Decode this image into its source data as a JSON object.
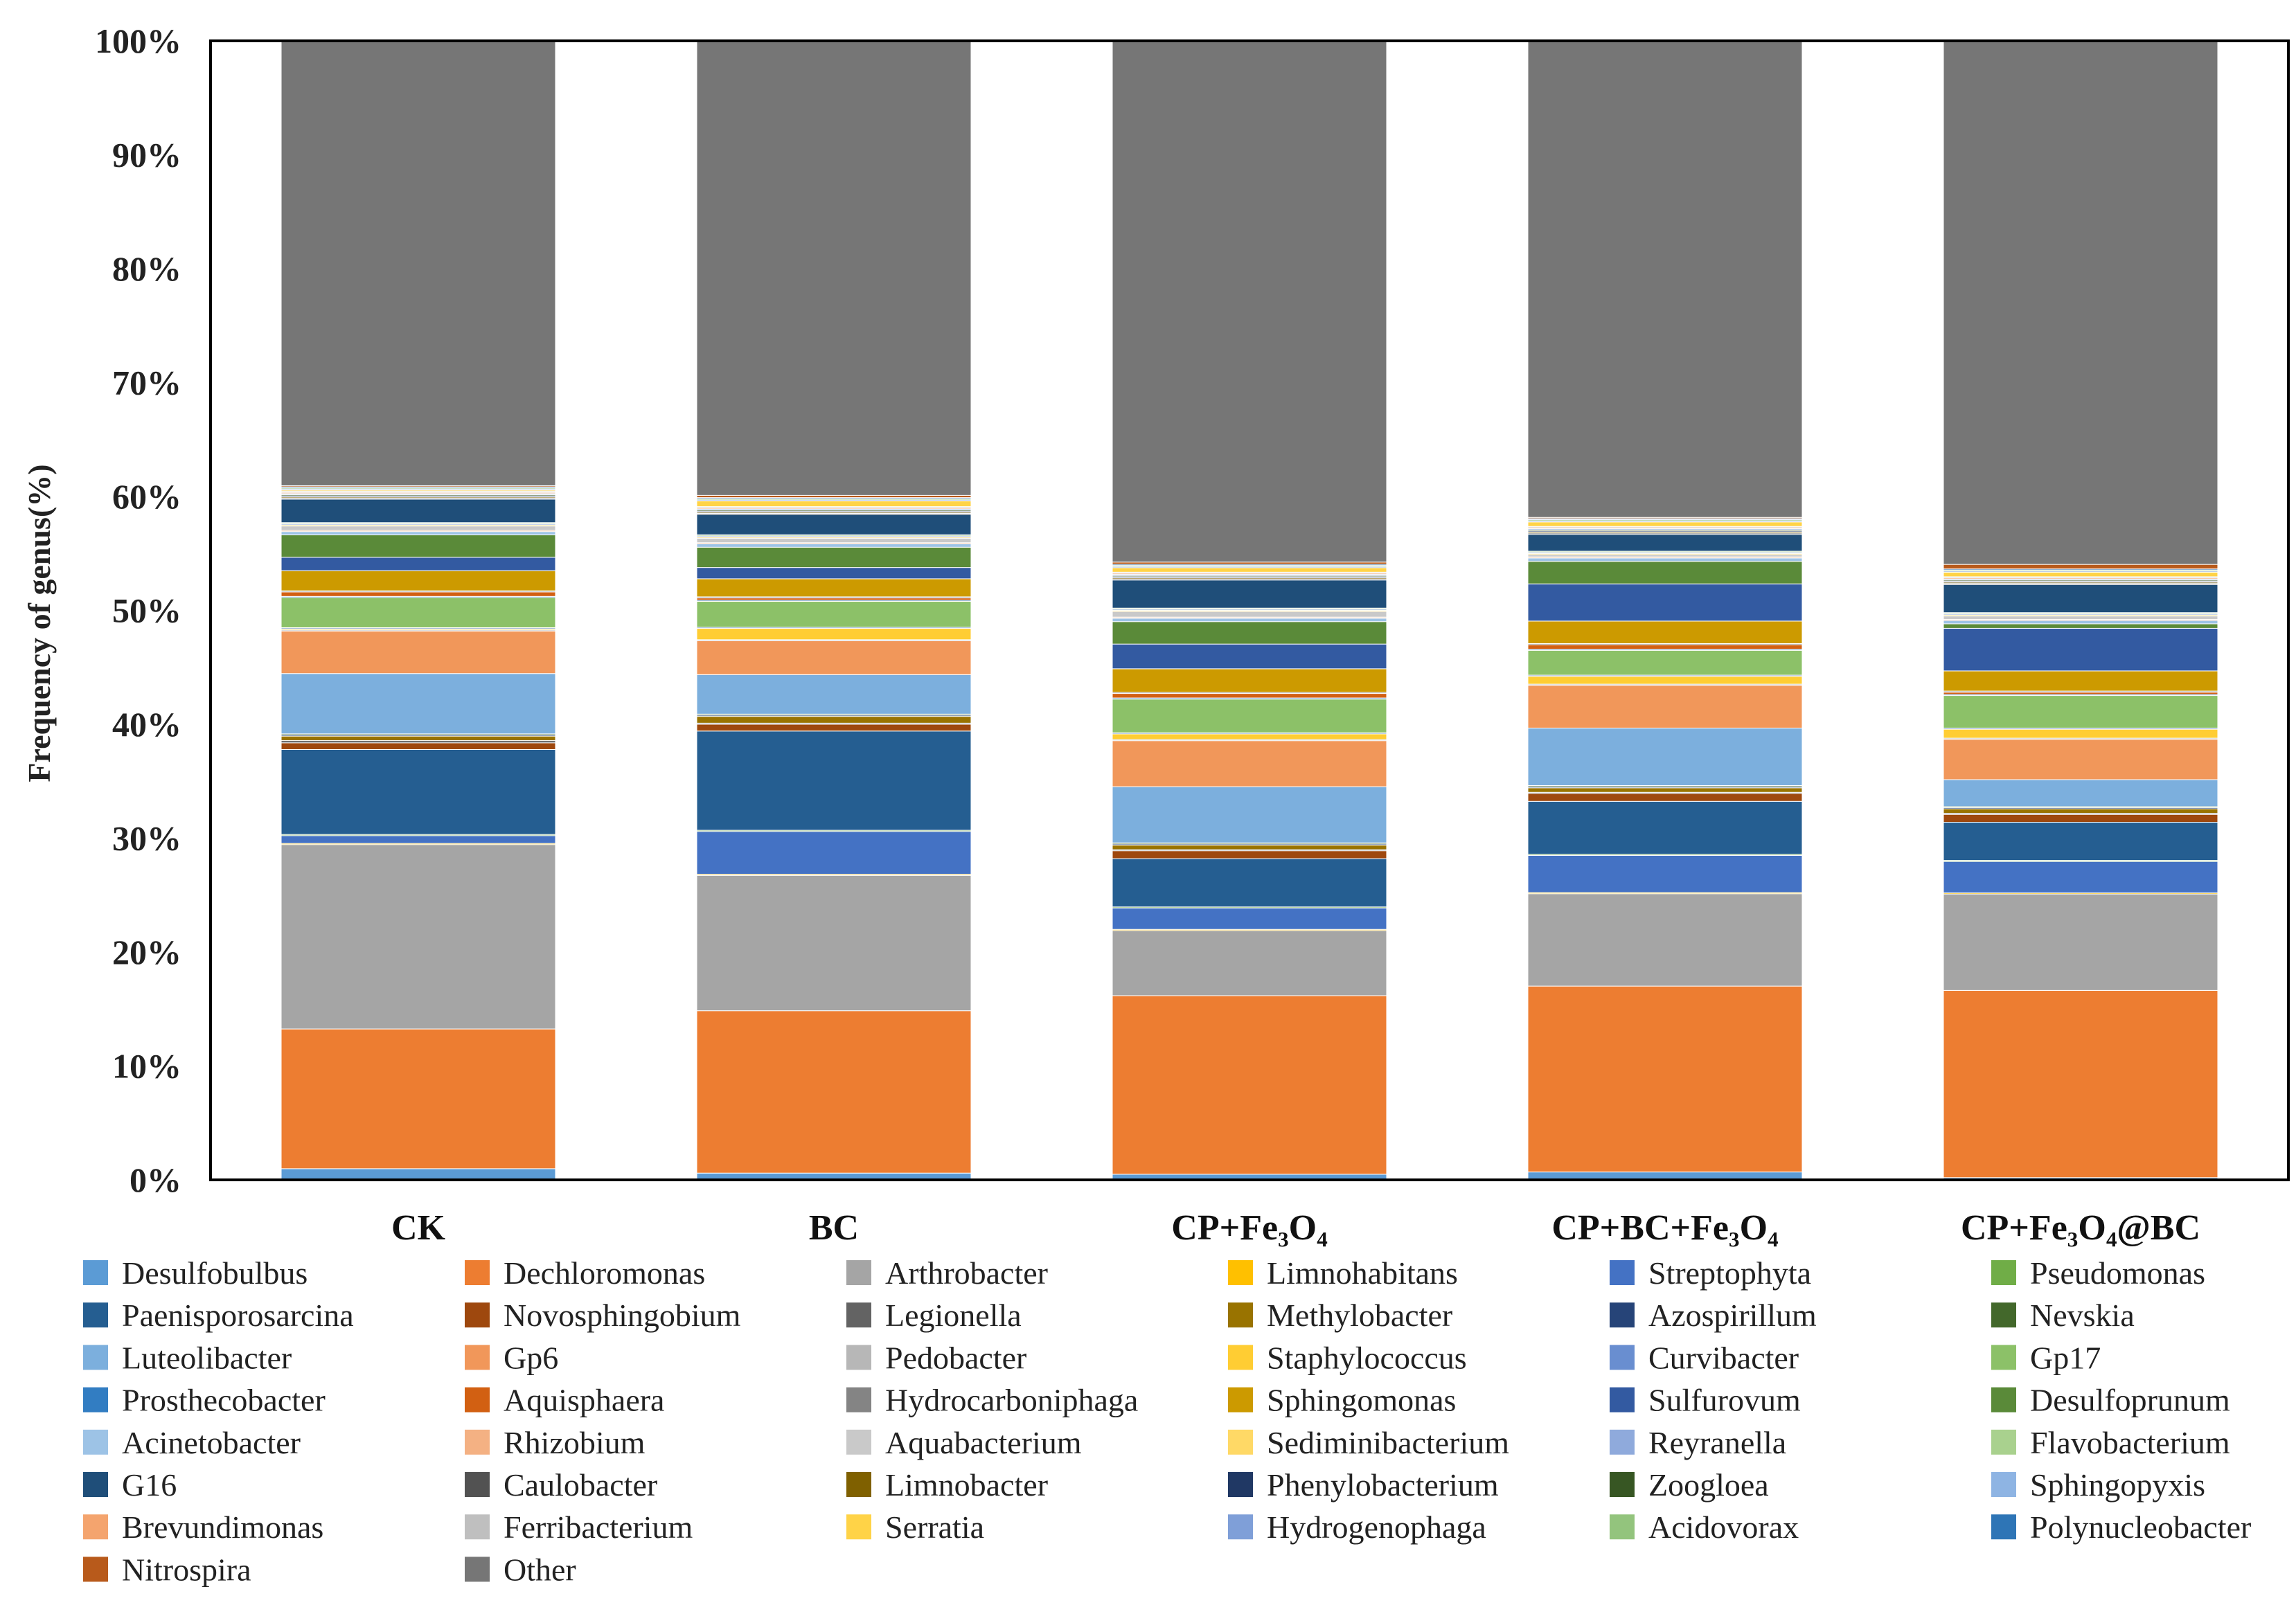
{
  "chart_data": {
    "type": "bar",
    "stacked": true,
    "title": "",
    "xlabel": "",
    "ylabel": "Frequency of genus(%)",
    "ylim": [
      0,
      100
    ],
    "yticks": [
      "0%",
      "10%",
      "20%",
      "30%",
      "40%",
      "50%",
      "60%",
      "70%",
      "80%",
      "90%",
      "100%"
    ],
    "grid": false,
    "legend_position": "bottom",
    "categories": [
      "CK",
      "BC",
      "CP+Fe₃O₄",
      "CP+BC+Fe₃O₄",
      "CP+Fe₃O₄@BC"
    ],
    "series": [
      {
        "name": "Desulfobulbus",
        "color": "#5B9BD5",
        "values": [
          1.0,
          0.6,
          0.5,
          0.7,
          0.2
        ]
      },
      {
        "name": "Dechloromonas",
        "color": "#ED7D31",
        "values": [
          12.5,
          14.4,
          15.9,
          16.5,
          16.7
        ]
      },
      {
        "name": "Arthrobacter",
        "color": "#A5A5A5",
        "values": [
          16.5,
          12.0,
          5.8,
          8.2,
          8.6
        ]
      },
      {
        "name": "Limnohabitans",
        "color": "#FFC000",
        "values": [
          0.1,
          0.1,
          0.1,
          0.1,
          0.1
        ]
      },
      {
        "name": "Streptophyta",
        "color": "#4472C4",
        "values": [
          0.7,
          3.8,
          1.9,
          3.3,
          2.8
        ]
      },
      {
        "name": "Pseudomonas",
        "color": "#70AD47",
        "values": [
          0.1,
          0.1,
          0.1,
          0.1,
          0.1
        ]
      },
      {
        "name": "Paenisporosarcina",
        "color": "#255E91",
        "values": [
          7.6,
          8.8,
          4.3,
          4.7,
          3.4
        ]
      },
      {
        "name": "Novosphingobium",
        "color": "#9E480E",
        "values": [
          0.6,
          0.6,
          0.7,
          0.7,
          0.7
        ]
      },
      {
        "name": "Legionella",
        "color": "#636363",
        "values": [
          0.2,
          0.1,
          0.1,
          0.1,
          0.1
        ]
      },
      {
        "name": "Methylobacter",
        "color": "#997300",
        "values": [
          0.4,
          0.6,
          0.4,
          0.4,
          0.4
        ]
      },
      {
        "name": "Azospirillum",
        "color": "#264478",
        "values": [
          0.1,
          0.1,
          0.1,
          0.1,
          0.1
        ]
      },
      {
        "name": "Nevskia",
        "color": "#43682B",
        "values": [
          0.1,
          0.1,
          0.1,
          0.1,
          0.1
        ]
      },
      {
        "name": "Luteolibacter",
        "color": "#7CAFDD",
        "values": [
          5.4,
          3.5,
          5.0,
          5.1,
          2.4
        ]
      },
      {
        "name": "Gp6",
        "color": "#F1975A",
        "values": [
          3.8,
          3.0,
          4.1,
          3.8,
          3.6
        ]
      },
      {
        "name": "Pedobacter",
        "color": "#B7B7B7",
        "values": [
          0.1,
          0.1,
          0.1,
          0.1,
          0.1
        ]
      },
      {
        "name": "Staphylococcus",
        "color": "#FFCD33",
        "values": [
          0.1,
          1.0,
          0.5,
          0.7,
          0.8
        ]
      },
      {
        "name": "Curvibacter",
        "color": "#698ED0",
        "values": [
          0.1,
          0.1,
          0.1,
          0.1,
          0.1
        ]
      },
      {
        "name": "Gp17",
        "color": "#8CC168",
        "values": [
          2.7,
          2.3,
          3.0,
          2.2,
          2.9
        ]
      },
      {
        "name": "Prosthecobacter",
        "color": "#327DC2",
        "values": [
          0.1,
          0.1,
          0.1,
          0.1,
          0.1
        ]
      },
      {
        "name": "Aquisphaera",
        "color": "#D26012",
        "values": [
          0.4,
          0.2,
          0.4,
          0.4,
          0.2
        ]
      },
      {
        "name": "Hydrocarboniphaga",
        "color": "#848484",
        "values": [
          0.1,
          0.1,
          0.1,
          0.1,
          0.1
        ]
      },
      {
        "name": "Sphingomonas",
        "color": "#CC9A00",
        "values": [
          1.8,
          1.6,
          2.1,
          2.0,
          1.8
        ]
      },
      {
        "name": "Sulfurovum",
        "color": "#335AA1",
        "values": [
          1.2,
          1.0,
          2.2,
          3.3,
          3.8
        ]
      },
      {
        "name": "Desulfoprunum",
        "color": "#5A8A39",
        "values": [
          2.0,
          1.8,
          2.0,
          2.0,
          0.4
        ]
      },
      {
        "name": "Acinetobacter",
        "color": "#9DC3E6",
        "values": [
          0.3,
          0.3,
          0.3,
          0.3,
          0.3
        ]
      },
      {
        "name": "Rhizobium",
        "color": "#F4B183",
        "values": [
          0.1,
          0.1,
          0.1,
          0.1,
          0.1
        ]
      },
      {
        "name": "Aquabacterium",
        "color": "#C9C9C9",
        "values": [
          0.4,
          0.4,
          0.5,
          0.2,
          0.3
        ]
      },
      {
        "name": "Sediminibacterium",
        "color": "#FFD966",
        "values": [
          0.1,
          0.1,
          0.1,
          0.1,
          0.1
        ]
      },
      {
        "name": "Reyranella",
        "color": "#8FAADC",
        "values": [
          0.1,
          0.1,
          0.1,
          0.1,
          0.1
        ]
      },
      {
        "name": "Flavobacterium",
        "color": "#A9D18E",
        "values": [
          0.1,
          0.1,
          0.1,
          0.1,
          0.1
        ]
      },
      {
        "name": "G16",
        "color": "#1F4E79",
        "values": [
          2.1,
          1.8,
          2.5,
          1.5,
          2.5
        ]
      },
      {
        "name": "Caulobacter",
        "color": "#525252",
        "values": [
          0.1,
          0.1,
          0.1,
          0.1,
          0.1
        ]
      },
      {
        "name": "Limnobacter",
        "color": "#7F6000",
        "values": [
          0.1,
          0.1,
          0.1,
          0.1,
          0.1
        ]
      },
      {
        "name": "Phenylobacterium",
        "color": "#203864",
        "values": [
          0.1,
          0.1,
          0.1,
          0.1,
          0.1
        ]
      },
      {
        "name": "Zoogloea",
        "color": "#375623",
        "values": [
          0.1,
          0.1,
          0.1,
          0.1,
          0.1
        ]
      },
      {
        "name": "Sphingopyxis",
        "color": "#8EB4E3",
        "values": [
          0.1,
          0.1,
          0.1,
          0.1,
          0.1
        ]
      },
      {
        "name": "Brevundimonas",
        "color": "#F4A46E",
        "values": [
          0.1,
          0.1,
          0.1,
          0.1,
          0.1
        ]
      },
      {
        "name": "Ferribacterium",
        "color": "#BFBFBF",
        "values": [
          0.1,
          0.1,
          0.1,
          0.1,
          0.1
        ]
      },
      {
        "name": "Serratia",
        "color": "#FFD347",
        "values": [
          0.1,
          0.5,
          0.4,
          0.4,
          0.4
        ]
      },
      {
        "name": "Hydrogenophaga",
        "color": "#7F9FD8",
        "values": [
          0.1,
          0.1,
          0.1,
          0.1,
          0.1
        ]
      },
      {
        "name": "Acidovorax",
        "color": "#93C47D",
        "values": [
          0.1,
          0.1,
          0.1,
          0.1,
          0.1
        ]
      },
      {
        "name": "Polynucleobacter",
        "color": "#2E75B6",
        "values": [
          0.1,
          0.1,
          0.1,
          0.1,
          0.1
        ]
      },
      {
        "name": "Nitrospira",
        "color": "#B85A1B",
        "values": [
          0.1,
          0.2,
          0.2,
          0.1,
          0.4
        ]
      },
      {
        "name": "Other",
        "color": "#767676",
        "values": [
          39.8,
          40.3,
          46.4,
          42.3,
          46.7
        ]
      }
    ]
  }
}
